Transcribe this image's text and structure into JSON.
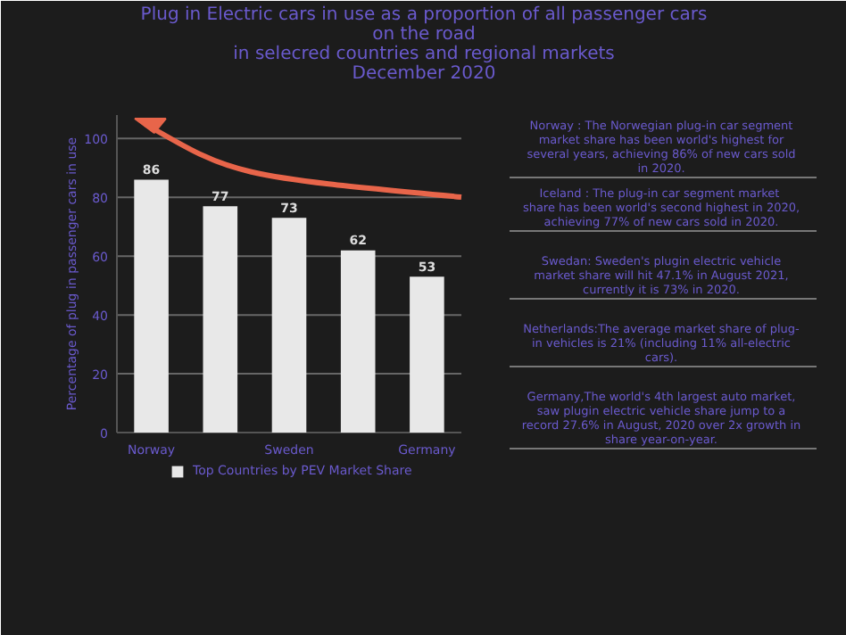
{
  "chart_data": {
    "type": "bar",
    "title": "Plug in Electric cars in use as a proportion of all passenger cars on the road",
    "subtitle": "in selecred countries and regional markets\nDecember 2020",
    "ylabel": "Percentage of plug in passenger cars in use",
    "categories": [
      "Norway",
      null,
      "Sweden",
      null,
      "Germany"
    ],
    "series": [
      {
        "name": "Top Countries by PEV Market Share",
        "color": "#e8e8e8",
        "values": [
          86,
          77,
          73,
          62,
          53
        ]
      }
    ],
    "data_labels": true,
    "ylim": [
      0,
      108
    ],
    "yticks": [
      0,
      20,
      40,
      60,
      80,
      100
    ],
    "grid": "y",
    "legend": "bottom",
    "annotations": [
      "Norway : The Norwegian plug-in car segment market share has been world's highest for several years, achieving 86% of new cars sold in 2020.",
      "Iceland : The  plug-in car segment market share has been world's second highest in 2020, achieving 77% of new cars sold in 2020.",
      "Swedan: Sweden's plugin electric vehicle market share will hit 47.1% in August 2021, currently it is 73% in 2020.",
      "Netherlands:The average market share of plug-in vehicles is 21% (including 11% all-electric cars).",
      "Germany,The world's 4th largest auto market, saw plugin electric vehicle share jump to a record 27.6% in August, 2020 over 2x growth in share year-on-year."
    ]
  }
}
